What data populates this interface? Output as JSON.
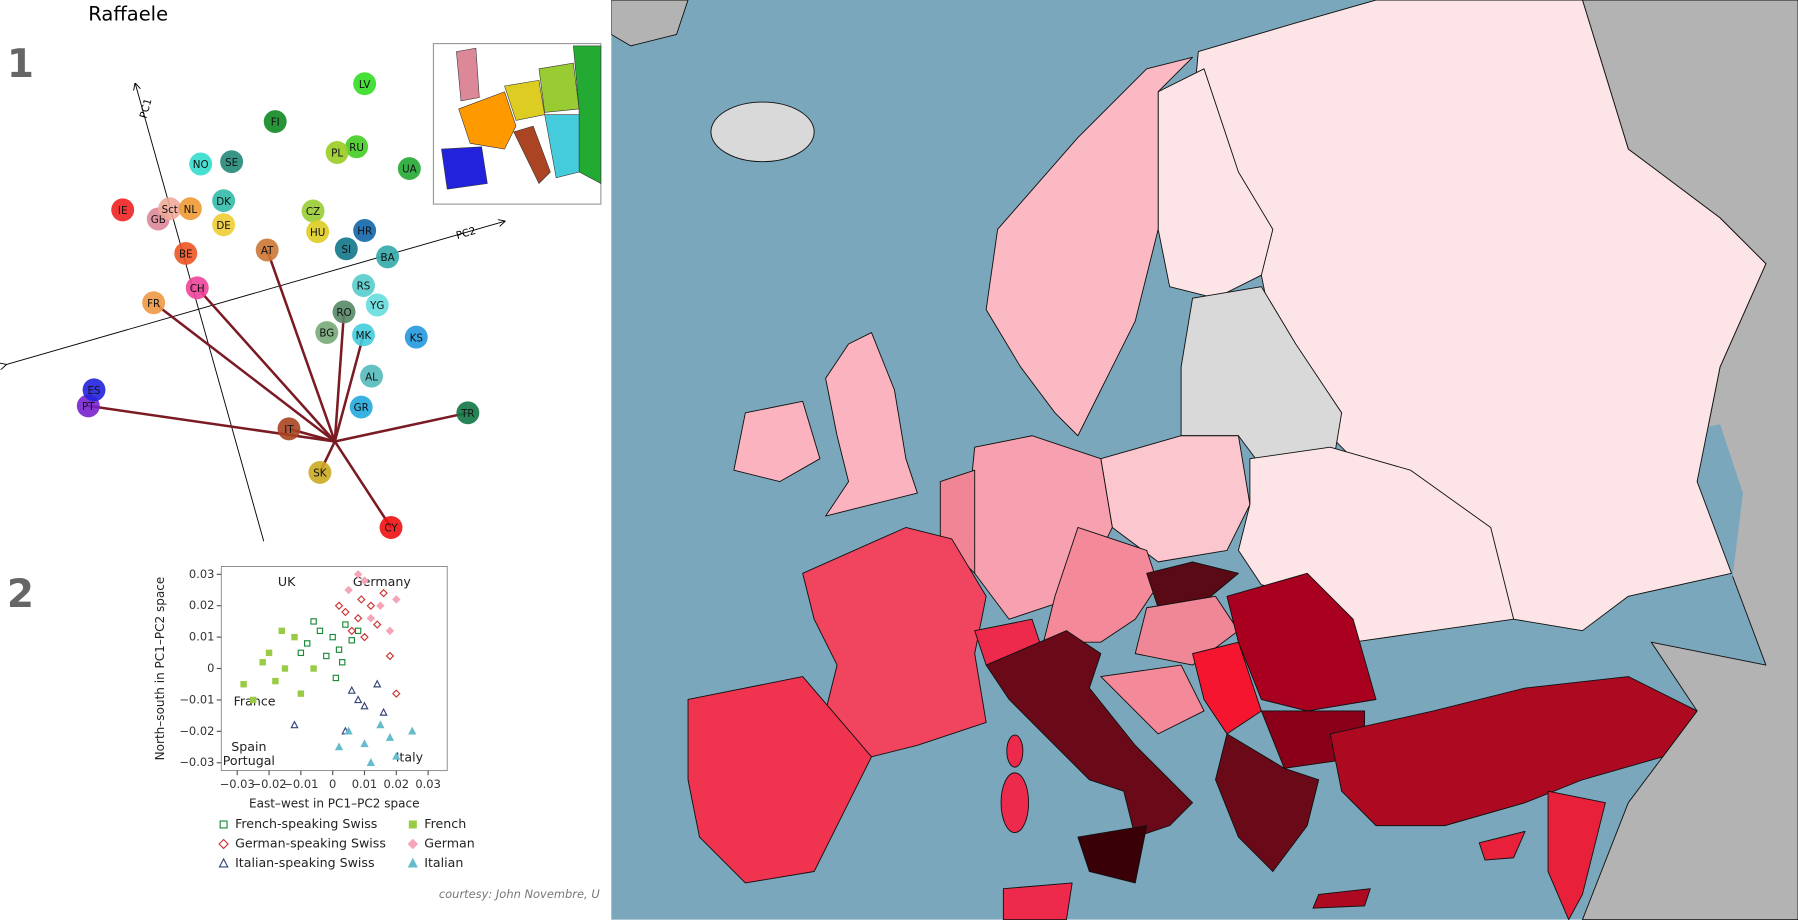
{
  "header": {
    "title": "Raffaele"
  },
  "panel_labels": [
    "1",
    "2"
  ],
  "pca": {
    "axis_labels": [
      "PC1",
      "PC2"
    ],
    "populations": [
      {
        "label": "LV",
        "color": "#33dd22"
      },
      {
        "label": "FI",
        "color": "#118822"
      },
      {
        "label": "RU",
        "color": "#44cc22"
      },
      {
        "label": "PL",
        "color": "#99cc22"
      },
      {
        "label": "UA",
        "color": "#22aa33"
      },
      {
        "label": "NO",
        "color": "#33ddcc"
      },
      {
        "label": "SE",
        "color": "#228877"
      },
      {
        "label": "DK",
        "color": "#33bbaa"
      },
      {
        "label": "CZ",
        "color": "#99cc33"
      },
      {
        "label": "HU",
        "color": "#ddcc22"
      },
      {
        "label": "HR",
        "color": "#1166aa"
      },
      {
        "label": "SI",
        "color": "#117788"
      },
      {
        "label": "BA",
        "color": "#33aaaa"
      },
      {
        "label": "IE",
        "color": "#ee2222"
      },
      {
        "label": "GB",
        "color": "#dd8899"
      },
      {
        "label": "Sct",
        "color": "#eeaa99"
      },
      {
        "label": "NL",
        "color": "#ee9933"
      },
      {
        "label": "DE",
        "color": "#eecc33"
      },
      {
        "label": "BE",
        "color": "#ee5522"
      },
      {
        "label": "CH",
        "color": "#ee4499"
      },
      {
        "label": "AT",
        "color": "#cc7733"
      },
      {
        "label": "FR",
        "color": "#ee9944"
      },
      {
        "label": "RS",
        "color": "#55cccc"
      },
      {
        "label": "YG",
        "color": "#66dddd"
      },
      {
        "label": "RO",
        "color": "#558866"
      },
      {
        "label": "BG",
        "color": "#77aa77"
      },
      {
        "label": "MK",
        "color": "#44ccdd"
      },
      {
        "label": "KS",
        "color": "#2299dd"
      },
      {
        "label": "AL",
        "color": "#55bbbb"
      },
      {
        "label": "GR",
        "color": "#22aadd"
      },
      {
        "label": "TR",
        "color": "#117744"
      },
      {
        "label": "IT",
        "color": "#aa4422"
      },
      {
        "label": "SK",
        "color": "#ccaa22"
      },
      {
        "label": "CY",
        "color": "#ee1111"
      },
      {
        "label": "PT",
        "color": "#7722cc"
      },
      {
        "label": "ES",
        "color": "#2222dd"
      }
    ]
  },
  "chart_data": {
    "type": "scatter",
    "xlabel": "East–west in PC1–PC2 space",
    "ylabel": "North–south in PC1–PC2 space",
    "annotations": [
      "UK",
      "Germany",
      "France",
      "Spain",
      "Portugal",
      "Italy"
    ],
    "xlim": [
      -0.035,
      0.036
    ],
    "ylim": [
      -0.0325,
      0.0325
    ],
    "xticks": [
      {
        "value": -0.03,
        "label": "−0.03"
      },
      {
        "value": -0.02,
        "label": "−0.02"
      },
      {
        "value": -0.01,
        "label": "−0.01"
      },
      0,
      0.01,
      0.02,
      0.03
    ],
    "yticks": [
      {
        "value": -0.03,
        "label": "−0.03"
      },
      {
        "value": -0.02,
        "label": "−0.02"
      },
      {
        "value": -0.01,
        "label": "−0.01"
      },
      0,
      0.01,
      0.02,
      0.03
    ],
    "series": [
      {
        "name": "French-speaking Swiss",
        "color": "#1a8a3a",
        "marker": "square",
        "filled": false,
        "x": [
          -0.008,
          -0.004,
          0,
          0.002,
          0.004,
          -0.002,
          0.006,
          -0.006,
          0.001,
          0.003,
          0.008,
          -0.01
        ],
        "values": [
          0.008,
          0.012,
          0.01,
          0.006,
          0.014,
          0.004,
          0.009,
          0.015,
          -0.003,
          0.002,
          0.012,
          0.005
        ]
      },
      {
        "name": "German-speaking Swiss",
        "color": "#cc3333",
        "marker": "diamond",
        "filled": false,
        "x": [
          0.004,
          0.008,
          0.012,
          0.006,
          0.01,
          0.014,
          0.002,
          0.016,
          0.018,
          0.02,
          0.009
        ],
        "values": [
          0.018,
          0.016,
          0.02,
          0.012,
          0.01,
          0.014,
          0.02,
          0.024,
          0.004,
          -0.008,
          0.022
        ]
      },
      {
        "name": "Italian-speaking Swiss",
        "color": "#334477",
        "marker": "triangle",
        "filled": false,
        "x": [
          0.006,
          0.01,
          0.014,
          -0.012,
          0.004,
          0.016,
          0.008
        ],
        "values": [
          -0.007,
          -0.012,
          -0.005,
          -0.018,
          -0.02,
          -0.014,
          -0.01
        ]
      },
      {
        "name": "French",
        "color": "#99cc44",
        "marker": "square",
        "filled": true,
        "x": [
          -0.02,
          -0.015,
          -0.025,
          -0.012,
          -0.018,
          -0.022,
          -0.01,
          -0.016,
          -0.028,
          -0.006
        ],
        "values": [
          0.005,
          0,
          -0.01,
          0.01,
          -0.004,
          0.002,
          -0.008,
          0.012,
          -0.005,
          0
        ]
      },
      {
        "name": "German",
        "color": "#f4a6b8",
        "marker": "diamond",
        "filled": true,
        "x": [
          0.005,
          0.01,
          0.015,
          0.02,
          0.012,
          0.018,
          0.008
        ],
        "values": [
          0.025,
          0.028,
          0.02,
          0.022,
          0.016,
          0.012,
          0.03
        ]
      },
      {
        "name": "Italian",
        "color": "#66bbcc",
        "marker": "triangle",
        "filled": true,
        "x": [
          0.005,
          0.01,
          0.015,
          0.02,
          0.012,
          0.018,
          0.002,
          0.025
        ],
        "values": [
          -0.02,
          -0.024,
          -0.018,
          -0.028,
          -0.03,
          -0.022,
          -0.025,
          -0.02
        ]
      }
    ]
  },
  "credit": "courtesy: John Novembre, U"
}
